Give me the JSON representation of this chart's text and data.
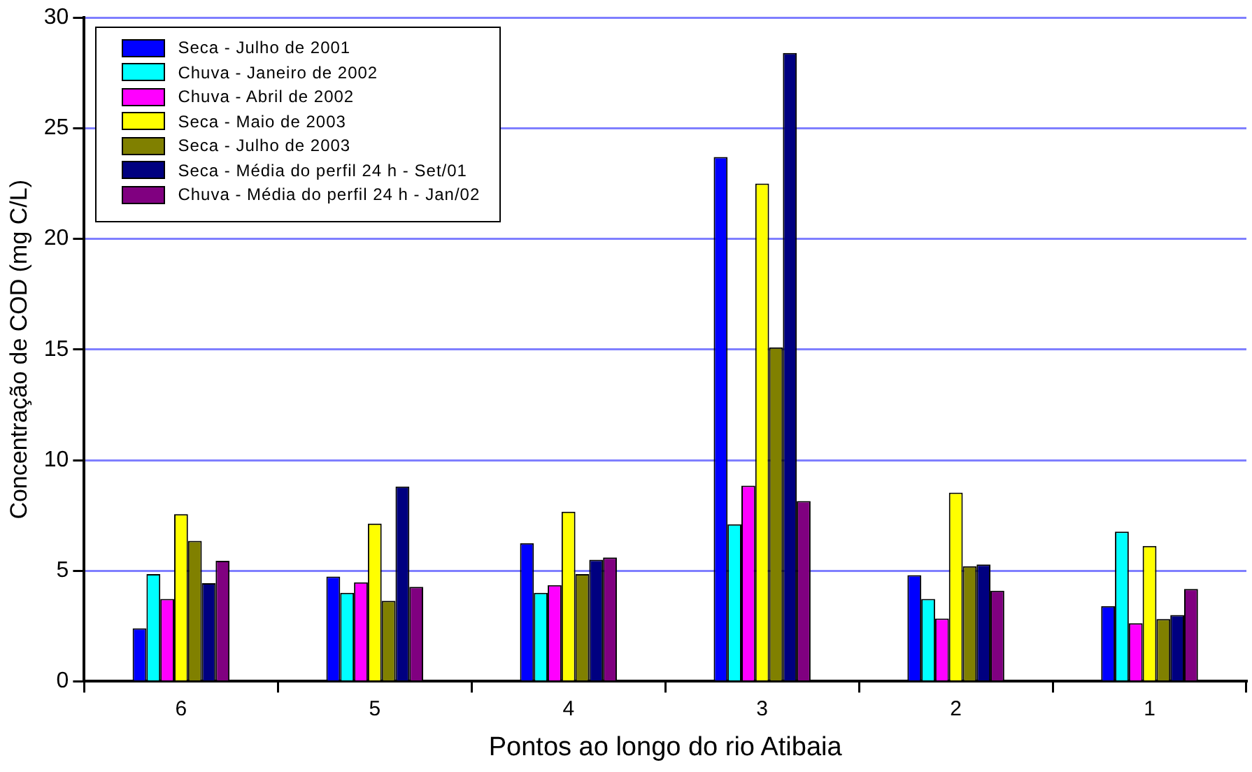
{
  "chart_data": {
    "type": "bar",
    "xlabel": "Pontos ao longo do rio Atibaia",
    "ylabel": "Concentração de COD (mg C/L)",
    "categories": [
      "6",
      "5",
      "4",
      "3",
      "2",
      "1"
    ],
    "series": [
      {
        "name": "Seca - Julho de 2001",
        "color": "#0000ff",
        "values": [
          2.4,
          4.74,
          6.25,
          23.7,
          4.8,
          3.4
        ]
      },
      {
        "name": "Chuva - Janeiro de 2002",
        "color": "#00ffff",
        "values": [
          4.85,
          4.0,
          4.0,
          7.1,
          3.73,
          6.77
        ]
      },
      {
        "name": "Chuva - Abril de 2002",
        "color": "#ff00ff",
        "values": [
          3.73,
          4.48,
          4.35,
          8.85,
          2.84,
          2.63
        ]
      },
      {
        "name": "Seca - Maio de 2003",
        "color": "#ffff00",
        "values": [
          7.56,
          7.13,
          7.67,
          22.5,
          8.53,
          6.12
        ]
      },
      {
        "name": "Seca - Julho de 2003",
        "color": "#808000",
        "values": [
          6.35,
          3.64,
          4.85,
          15.1,
          5.2,
          2.82
        ]
      },
      {
        "name": "Seca - Média do perfil 24 h - Set/01",
        "color": "#000080",
        "values": [
          4.44,
          8.81,
          5.5,
          28.4,
          5.28,
          3.0
        ]
      },
      {
        "name": "Chuva - Média do perfil 24 h - Jan/02",
        "color": "#800080",
        "values": [
          5.45,
          4.27,
          5.6,
          8.15,
          4.1,
          4.18
        ]
      }
    ],
    "ylim": [
      0,
      30
    ],
    "yticks": [
      0,
      5,
      10,
      15,
      20,
      25,
      30
    ],
    "grid": "y",
    "legend": "top left"
  }
}
